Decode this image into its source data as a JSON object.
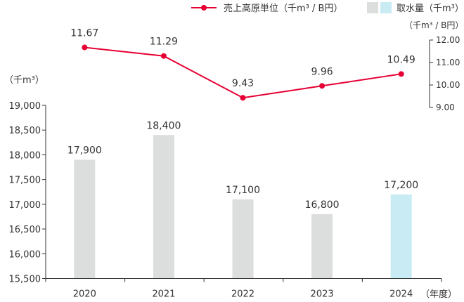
{
  "chart_data": {
    "type": "bar+line",
    "categories": [
      "2020",
      "2021",
      "2022",
      "2023",
      "2024"
    ],
    "x_unit_label": "（年度）",
    "bar_series": {
      "name": "取水量（千m³）",
      "values": [
        17900,
        18400,
        17100,
        16800,
        17200
      ],
      "value_labels": [
        "17,900",
        "18,400",
        "17,100",
        "16,800",
        "17,200"
      ],
      "colors": [
        "#dcdddd",
        "#dcdddd",
        "#dcdddd",
        "#dcdddd",
        "#c9ecf4"
      ]
    },
    "line_series": {
      "name": "売上高原単位（千m³ / B円）",
      "values": [
        11.67,
        11.29,
        9.43,
        9.96,
        10.49
      ],
      "value_labels": [
        "11.67",
        "11.29",
        "9.43",
        "9.96",
        "10.49"
      ],
      "color": "#e60033"
    },
    "left_axis": {
      "unit_label": "（千m³）",
      "ylim": [
        15500,
        19000
      ],
      "ticks": [
        15500,
        16000,
        16500,
        17000,
        17500,
        18000,
        18500,
        19000
      ],
      "tick_labels": [
        "15,500",
        "16,000",
        "16,500",
        "17,000",
        "17,500",
        "18,000",
        "18,500",
        "19,000"
      ]
    },
    "right_axis": {
      "unit_label": "（千m³ / B円）",
      "ticks": [
        9,
        10,
        11,
        12
      ],
      "tick_labels": [
        "9.00",
        "10.00",
        "11.00",
        "12.00"
      ]
    },
    "legend": {
      "line_label": "売上高原単位（千m³ / B円）",
      "bar_label": "取水量（千m³）",
      "bar_swatch_colors": [
        "#dcdddd",
        "#c9ecf4"
      ]
    }
  }
}
